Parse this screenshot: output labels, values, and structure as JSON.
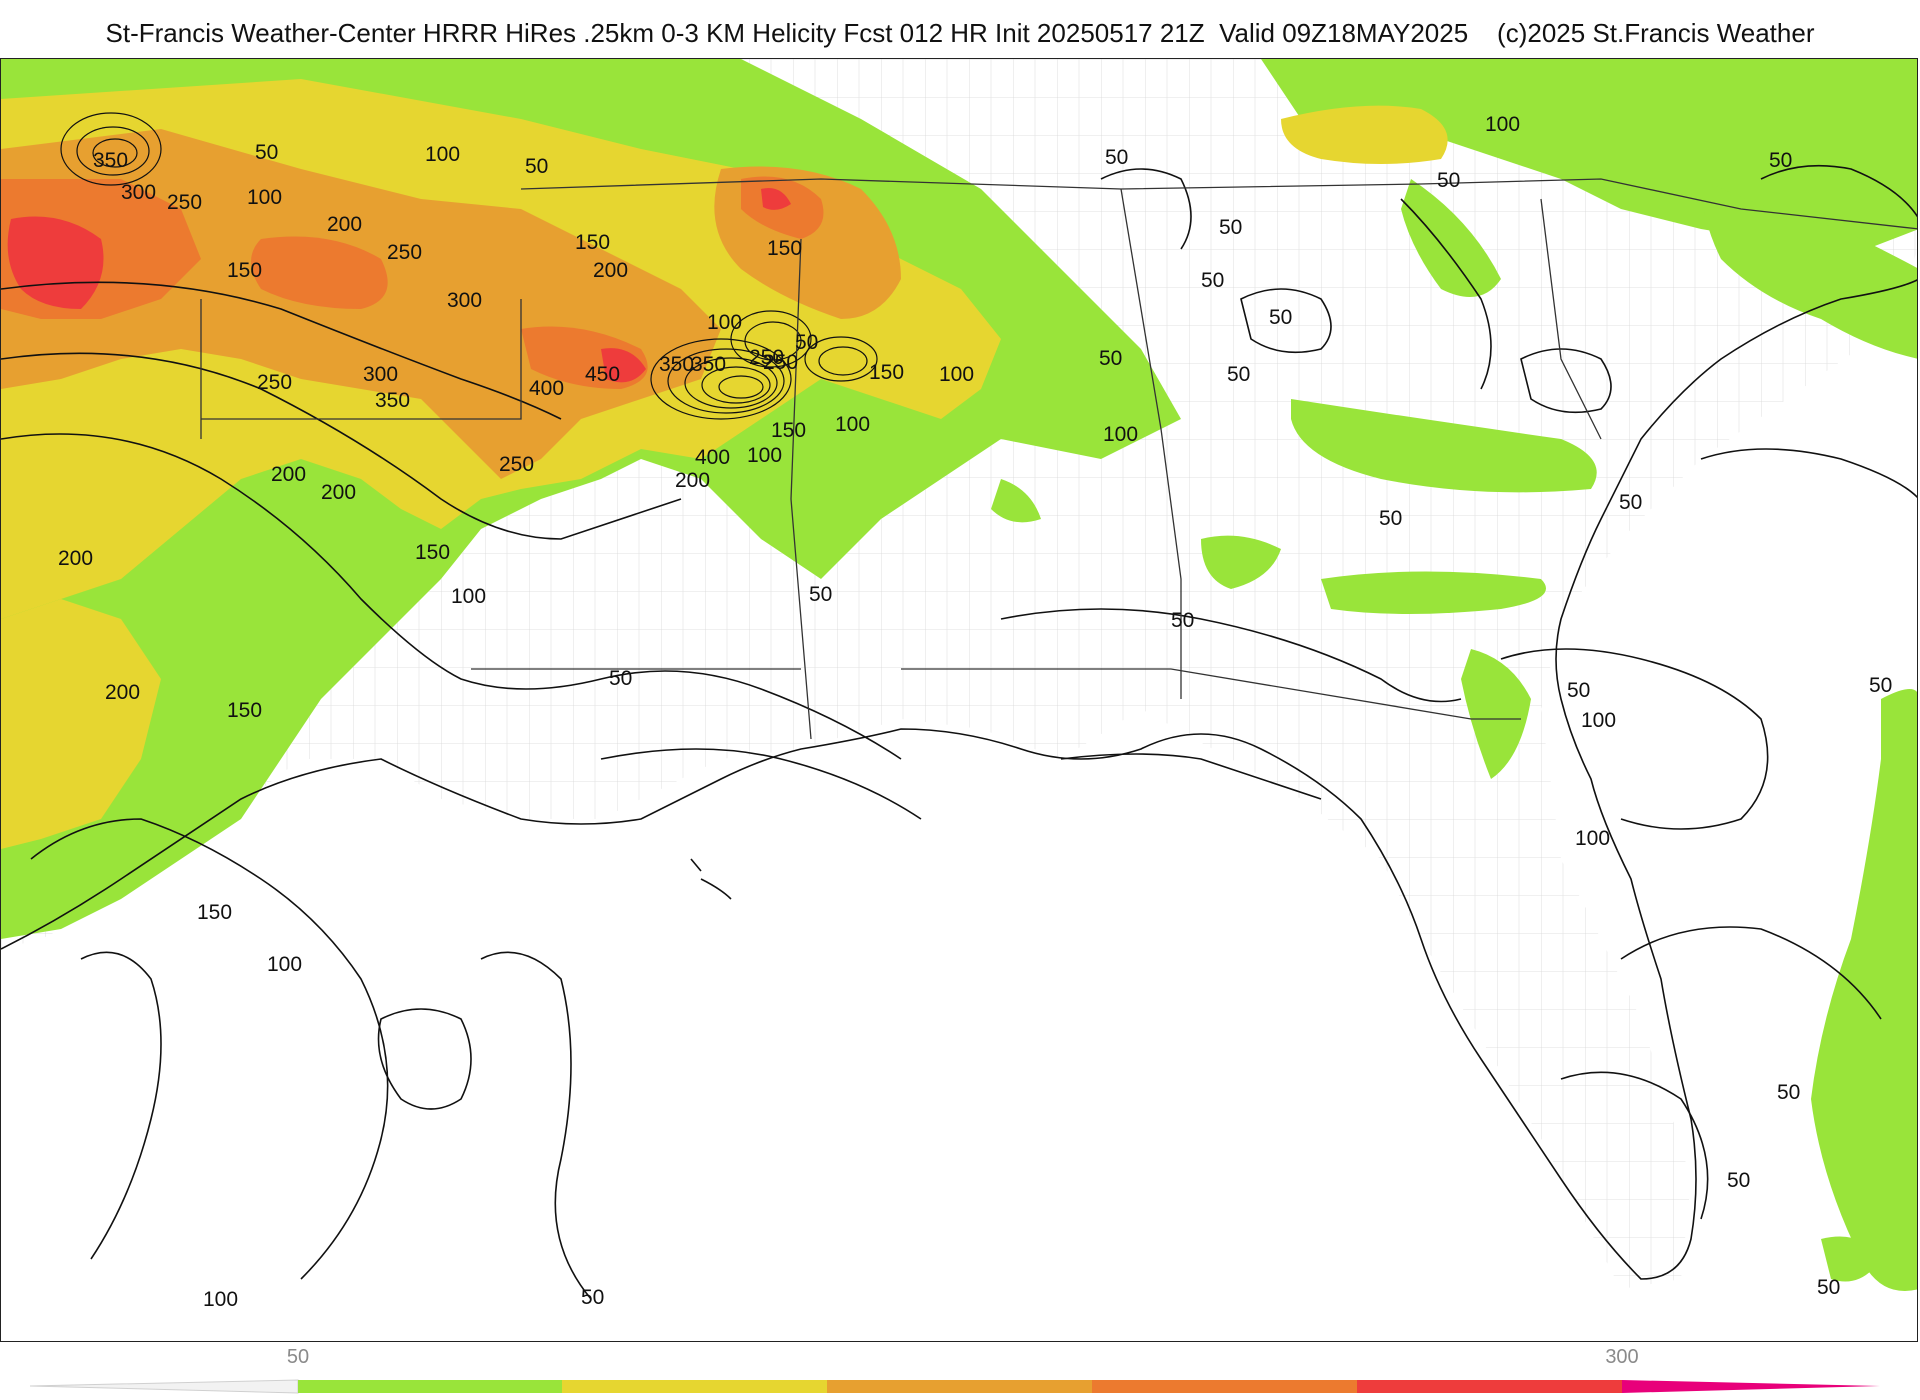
{
  "header": {
    "title": "St-Francis Weather-Center HRRR HiRes .25km 0-3 KM Helicity Fcst 012 HR Init 20250517 21Z  Valid 09Z18MAY2025    (c)2025 St.Francis Weather"
  },
  "map": {
    "contour_labels": [
      "350",
      "300",
      "250",
      "50",
      "100",
      "200",
      "150",
      "250",
      "300",
      "100",
      "50",
      "150",
      "200",
      "100",
      "150",
      "50",
      "250",
      "350",
      "400",
      "450",
      "350",
      "250",
      "150",
      "100",
      "150",
      "100",
      "50",
      "50",
      "400",
      "100",
      "200",
      "250",
      "300",
      "350",
      "250",
      "200",
      "200",
      "150",
      "100",
      "200",
      "50",
      "50",
      "100",
      "50",
      "50",
      "50",
      "50",
      "50",
      "50",
      "100",
      "200",
      "150",
      "150",
      "100",
      "50",
      "50",
      "100",
      "50",
      "100",
      "50",
      "50",
      "50",
      "50",
      "50",
      "100",
      "50"
    ],
    "colors": {
      "green": "#99e43a",
      "yellow": "#e6d630",
      "light_orange": "#e7a030",
      "orange": "#ec7a2f",
      "red": "#ee3c3c",
      "magenta": "#e8007a",
      "contour": "#111111",
      "boundary": "#444444",
      "county": "#c8c8c8"
    }
  },
  "colorbar": {
    "ticks": [
      "50",
      "300"
    ],
    "segment_colors": [
      "#99e43a",
      "#e6d630",
      "#e7a030",
      "#ec7a2f",
      "#ee3c3c",
      "#e8007a"
    ]
  }
}
